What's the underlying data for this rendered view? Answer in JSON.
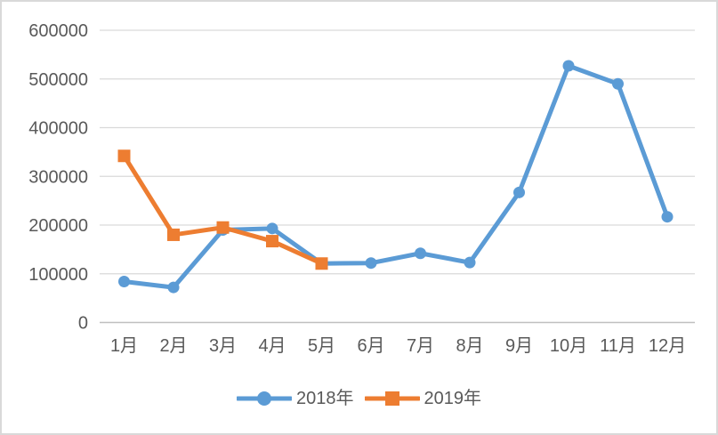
{
  "chart_data": {
    "type": "line",
    "title": "",
    "xlabel": "",
    "ylabel": "",
    "categories": [
      "1月",
      "2月",
      "3月",
      "4月",
      "5月",
      "6月",
      "7月",
      "8月",
      "9月",
      "10月",
      "11月",
      "12月"
    ],
    "series": [
      {
        "name": "2018年",
        "color": "#5B9BD5",
        "marker": "circle",
        "values": [
          84000,
          72000,
          190000,
          193000,
          121000,
          122000,
          142000,
          123000,
          267000,
          527000,
          490000,
          217000
        ]
      },
      {
        "name": "2019年",
        "color": "#ED7D31",
        "marker": "square",
        "values": [
          342000,
          180000,
          195000,
          167000,
          121000
        ]
      }
    ],
    "ylim": [
      0,
      600000
    ],
    "ytick_step": 100000,
    "yticks": [
      "0",
      "100000",
      "200000",
      "300000",
      "400000",
      "500000",
      "600000"
    ],
    "grid": true,
    "legend_position": "bottom"
  },
  "colors": {
    "gridline": "#d9d9d9",
    "axis_line": "#bfbfbf",
    "tick_text": "#595959",
    "frame_border": "#d9d9d9",
    "background": "#ffffff"
  }
}
